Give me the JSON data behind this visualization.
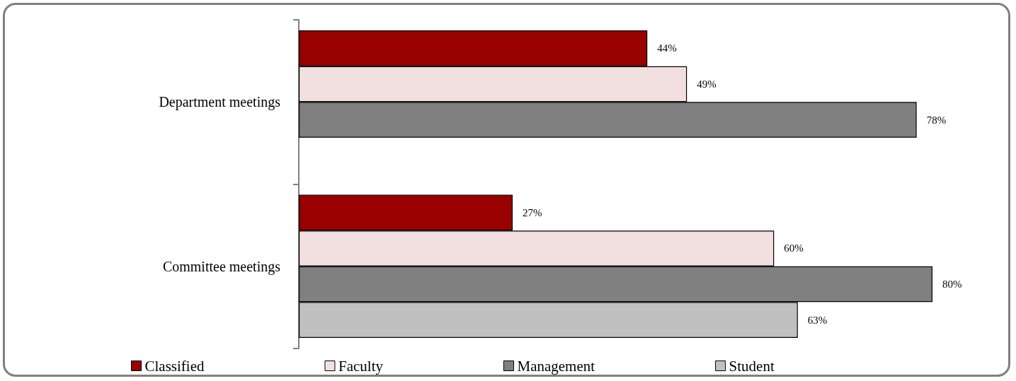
{
  "chart_data": {
    "type": "bar",
    "orientation": "horizontal",
    "categories": [
      "Department meetings",
      "Committee meetings"
    ],
    "series": [
      {
        "name": "Classified",
        "color": "#990000",
        "values": [
          44,
          27
        ],
        "value_labels": [
          "44%",
          "27%"
        ]
      },
      {
        "name": "Faculty",
        "color": "#f2e0e0",
        "values": [
          49,
          60
        ],
        "value_labels": [
          "49%",
          "60%"
        ]
      },
      {
        "name": "Management",
        "color": "#808080",
        "values": [
          78,
          80
        ],
        "value_labels": [
          "78%",
          "80%"
        ]
      },
      {
        "name": "Student",
        "color": "#c0c0c0",
        "values": [
          null,
          63
        ],
        "value_labels": [
          null,
          "63%"
        ]
      }
    ],
    "legend": "bottom"
  }
}
